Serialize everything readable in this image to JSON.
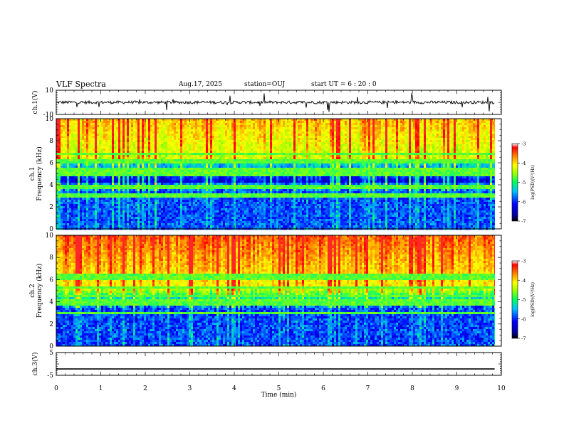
{
  "header": {
    "title": "VLF Spectra",
    "date": "Aug.17, 2025",
    "station": "station=OUJ",
    "start_ut": "start UT =   6 : 20 : 0"
  },
  "colors": {
    "frame": "#000000",
    "colormap": [
      "#00005a",
      "#0000ff",
      "#00a0ff",
      "#00ff80",
      "#a0ff00",
      "#ffff00",
      "#ff8000",
      "#ff0000",
      "#ffffff"
    ]
  },
  "chart_data": [
    {
      "type": "line",
      "panel": "ch1-waveform",
      "ylabel": "ch.1(V)",
      "xlim": [
        0,
        10
      ],
      "ylim": [
        -10,
        10
      ],
      "yticks": [
        {
          "value": 10,
          "label": "10"
        },
        {
          "value": -10,
          "label": "-10"
        }
      ],
      "baseline": 0,
      "description_values": {
        "data_end_min": 9.85
      }
    },
    {
      "type": "heatmap",
      "panel": "ch1-spectrogram",
      "ylabel": "ch.1\nFrequency (kHz)",
      "ylabel_line1": "ch.1",
      "ylabel_line2": "Frequency (kHz)",
      "xlim": [
        0,
        10
      ],
      "ylim": [
        0,
        10
      ],
      "yticks": [
        0,
        2,
        4,
        6,
        8,
        10
      ],
      "colorbar": {
        "label": "log(PSD)(V²/Hz)",
        "range": [
          -7,
          -3
        ],
        "ticks": [
          -3,
          -4,
          -5,
          -6,
          -7
        ]
      },
      "data_end_min": 9.85
    },
    {
      "type": "heatmap",
      "panel": "ch2-spectrogram",
      "ylabel_line1": "ch.2",
      "ylabel_line2": "Frequency (kHz)",
      "xlim": [
        0,
        10
      ],
      "ylim": [
        0,
        10
      ],
      "yticks": [
        0,
        2,
        4,
        6,
        8,
        10
      ],
      "colorbar": {
        "label": "log(PSD)(V²/Hz)",
        "range": [
          -7,
          -3
        ],
        "ticks": [
          -3,
          -4,
          -5,
          -6,
          -7
        ]
      },
      "data_end_min": 9.85
    },
    {
      "type": "line",
      "panel": "ch3-waveform",
      "ylabel": "ch.3(V)",
      "xlim": [
        0,
        10
      ],
      "ylim": [
        -5,
        5
      ],
      "yticks": [
        {
          "value": 5,
          "label": "5"
        },
        {
          "value": -5,
          "label": "-5"
        }
      ],
      "baseline": -2.2,
      "data_end_min": 9.85
    }
  ],
  "xaxis": {
    "label": "Time (min)",
    "ticks": [
      "0",
      "1",
      "2",
      "3",
      "4",
      "5",
      "6",
      "7",
      "8",
      "9",
      "10"
    ]
  }
}
